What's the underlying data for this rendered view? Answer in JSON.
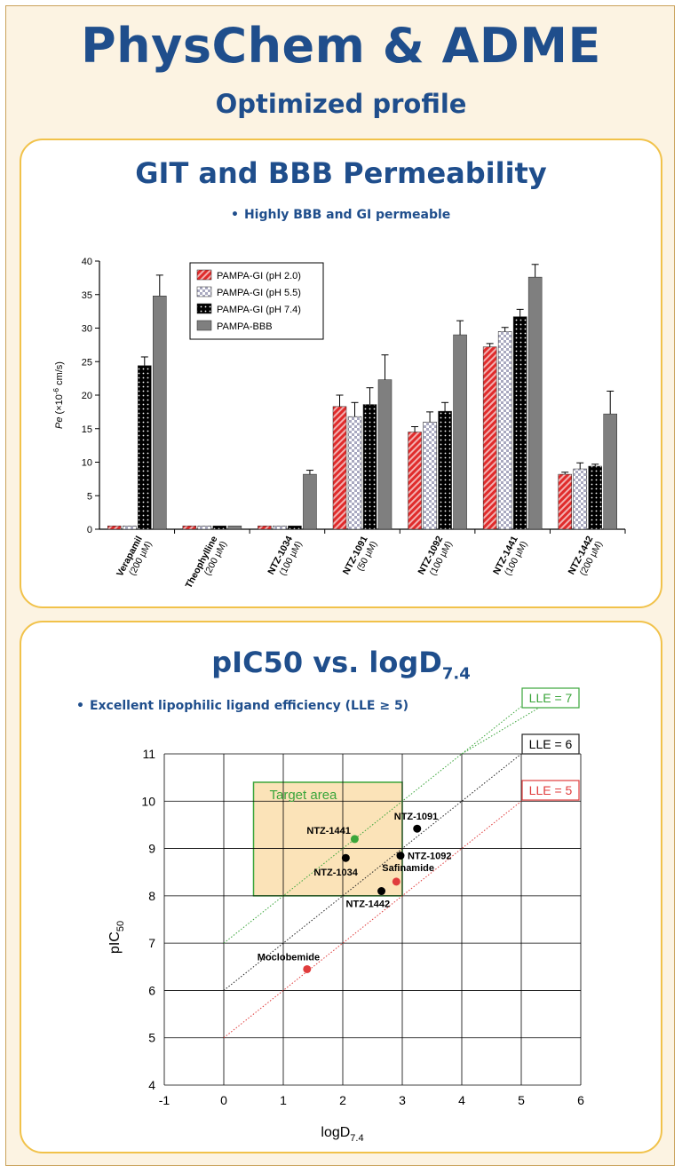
{
  "header": {
    "title": "PhysChem & ADME",
    "subtitle": "Optimized profile"
  },
  "permeability": {
    "title": "GIT and BBB Permeability",
    "bullet": "Highly BBB and GI permeable"
  },
  "lipophilicity": {
    "title_main": "pIC50 vs. logD",
    "title_sub": "7.4",
    "bullet": "Excellent lipophilic ligand efficiency (LLE ≥ 5)"
  },
  "colors": {
    "navy": "#1f4e8c",
    "gold": "#f1c24a",
    "red": "#e03c3c",
    "green": "#3aa53a",
    "gray": "#7f7f7f"
  },
  "chart_data": [
    {
      "type": "bar",
      "title": "",
      "ylabel_italic": "Pe",
      "ylabel_rest": "(×10",
      "ylabel_exp": "-6",
      "ylabel_unit": "cm/s)",
      "ylim": [
        0,
        40
      ],
      "yticks": [
        "0",
        "5",
        "10",
        "15",
        "20",
        "25",
        "30",
        "35",
        "40"
      ],
      "legend_position": "top-left",
      "categories": [
        {
          "name": "Verapamil",
          "conc": "(200 µM)"
        },
        {
          "name": "Theophylline",
          "conc": "(200 µM)"
        },
        {
          "name": "NTZ-1034",
          "conc": "(100 µM)"
        },
        {
          "name": "NTZ-1091",
          "conc": "(50 µM)"
        },
        {
          "name": "NTZ-1092",
          "conc": "(100 µM)"
        },
        {
          "name": "NTZ-1441",
          "conc": "(100 µM)"
        },
        {
          "name": "NTZ-1442",
          "conc": "(200 µM)"
        }
      ],
      "series": [
        {
          "name": "PAMPA-GI (pH 2.0)",
          "style": "red-hatch",
          "values": [
            0.5,
            0.5,
            0.5,
            18.3,
            14.5,
            27.2,
            8.2
          ],
          "errors": [
            0,
            0,
            0,
            1.7,
            0.8,
            0.5,
            0.3
          ]
        },
        {
          "name": "PAMPA-GI (pH 5.5)",
          "style": "gray-check",
          "values": [
            0.5,
            0.5,
            0.5,
            16.8,
            16.0,
            29.5,
            9.0
          ],
          "errors": [
            0,
            0,
            0,
            2.1,
            1.5,
            0.6,
            0.9
          ]
        },
        {
          "name": "PAMPA-GI (pH 7.4)",
          "style": "black-dots",
          "values": [
            24.4,
            0.5,
            0.5,
            18.6,
            17.6,
            31.7,
            9.4
          ],
          "errors": [
            1.3,
            0,
            0,
            2.5,
            1.3,
            1.1,
            0.3
          ]
        },
        {
          "name": "PAMPA-BBB",
          "style": "gray-solid",
          "values": [
            34.8,
            0.5,
            8.2,
            22.3,
            29.0,
            37.6,
            17.2
          ],
          "errors": [
            3.1,
            0,
            0.6,
            3.7,
            2.1,
            1.9,
            3.4
          ]
        }
      ]
    },
    {
      "type": "scatter",
      "xlabel": "logD",
      "xlabel_sub": "7.4",
      "ylabel": "pIC",
      "ylabel_sub": "50",
      "xlim": [
        -1,
        6
      ],
      "ylim": [
        4,
        11
      ],
      "xticks": [
        "-1",
        "0",
        "1",
        "2",
        "3",
        "4",
        "5",
        "6"
      ],
      "yticks": [
        "4",
        "5",
        "6",
        "7",
        "8",
        "9",
        "10",
        "11"
      ],
      "grid": true,
      "target_area": {
        "label": "Target area",
        "x": [
          0.5,
          3.0
        ],
        "y": [
          8.0,
          10.4
        ]
      },
      "lle_lines": [
        {
          "label": "LLE = 7",
          "lle": 7,
          "color": "#3aa53a"
        },
        {
          "label": "LLE = 6",
          "lle": 6,
          "color": "#222222"
        },
        {
          "label": "LLE = 5",
          "lle": 5,
          "color": "#e03c3c"
        }
      ],
      "points": [
        {
          "label": "NTZ-1441",
          "x": 2.2,
          "y": 9.2,
          "color": "#3aa53a"
        },
        {
          "label": "NTZ-1091",
          "x": 3.25,
          "y": 9.42,
          "color": "#000000"
        },
        {
          "label": "NTZ-1034",
          "x": 2.05,
          "y": 8.8,
          "color": "#000000"
        },
        {
          "label": "NTZ-1092",
          "x": 2.97,
          "y": 8.85,
          "color": "#000000"
        },
        {
          "label": "Safinamide",
          "x": 2.9,
          "y": 8.3,
          "color": "#e03c3c"
        },
        {
          "label": "NTZ-1442",
          "x": 2.65,
          "y": 8.1,
          "color": "#000000"
        },
        {
          "label": "Moclobemide",
          "x": 1.4,
          "y": 6.45,
          "color": "#e03c3c"
        }
      ]
    }
  ]
}
